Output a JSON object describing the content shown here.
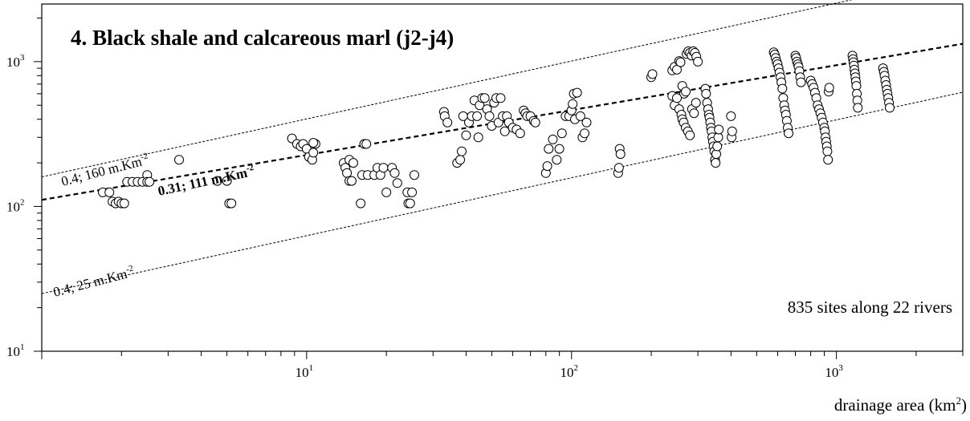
{
  "chart_data": {
    "type": "scatter",
    "title": "4. Black shale and calcareous marl  (j2-j4)",
    "xlabel": "drainage area (km²)",
    "xlabel_base": "drainage area (km",
    "xlabel_exp": "2",
    "xlabel_close": ")",
    "x_scale": "log",
    "y_scale": "log",
    "xlim": [
      1,
      3000
    ],
    "ylim": [
      10,
      2500
    ],
    "x_ticks": [
      {
        "base": "10",
        "exp": "1",
        "value": 10
      },
      {
        "base": "10",
        "exp": "2",
        "value": 100
      },
      {
        "base": "10",
        "exp": "3",
        "value": 1000
      }
    ],
    "y_ticks": [
      {
        "base": "10",
        "exp": "1",
        "value": 10
      },
      {
        "base": "10",
        "exp": "2",
        "value": 100
      },
      {
        "base": "10",
        "exp": "3",
        "value": 1000
      }
    ],
    "annotation": "835 sites along 22 rivers",
    "lines": [
      {
        "label": "0.4; 160 m.Km",
        "label_exp": "-2",
        "coef": 160,
        "exponent": 0.4,
        "style": "thin-dashed"
      },
      {
        "label": "0.31; 111 m.Km",
        "label_exp": "-2",
        "coef": 111,
        "exponent": 0.31,
        "style": "bold-dashed"
      },
      {
        "label": "0.4; 25 m.Km",
        "label_exp": "-2",
        "coef": 25,
        "exponent": 0.4,
        "style": "thin-dashed"
      }
    ],
    "points": [
      [
        1.7,
        125
      ],
      [
        1.8,
        125
      ],
      [
        1.85,
        108
      ],
      [
        1.9,
        105
      ],
      [
        1.95,
        108
      ],
      [
        2.0,
        105
      ],
      [
        2.05,
        105
      ],
      [
        2.1,
        148
      ],
      [
        2.2,
        148
      ],
      [
        2.3,
        148
      ],
      [
        2.4,
        148
      ],
      [
        2.5,
        165
      ],
      [
        2.5,
        148
      ],
      [
        2.55,
        148
      ],
      [
        3.3,
        210
      ],
      [
        4.6,
        150
      ],
      [
        5.0,
        150
      ],
      [
        5.1,
        105
      ],
      [
        5.2,
        105
      ],
      [
        8.8,
        295
      ],
      [
        9.2,
        270
      ],
      [
        9.5,
        260
      ],
      [
        9.7,
        270
      ],
      [
        10.0,
        250
      ],
      [
        10.2,
        220
      ],
      [
        10.5,
        210
      ],
      [
        10.6,
        235
      ],
      [
        10.8,
        270
      ],
      [
        10.6,
        275
      ],
      [
        13.8,
        200
      ],
      [
        14.0,
        185
      ],
      [
        14.2,
        170
      ],
      [
        14.5,
        210
      ],
      [
        14.5,
        150
      ],
      [
        14.8,
        150
      ],
      [
        15.0,
        200
      ],
      [
        16.0,
        105
      ],
      [
        16.2,
        165
      ],
      [
        16.5,
        270
      ],
      [
        16.8,
        270
      ],
      [
        17.0,
        165
      ],
      [
        18.0,
        165
      ],
      [
        18.5,
        185
      ],
      [
        19.0,
        165
      ],
      [
        19.5,
        185
      ],
      [
        20.0,
        125
      ],
      [
        21.0,
        185
      ],
      [
        21.5,
        170
      ],
      [
        22.0,
        145
      ],
      [
        24.0,
        125
      ],
      [
        24.2,
        105
      ],
      [
        24.6,
        105
      ],
      [
        25.0,
        125
      ],
      [
        25.5,
        165
      ],
      [
        33,
        450
      ],
      [
        33.2,
        420
      ],
      [
        34,
        380
      ],
      [
        37,
        200
      ],
      [
        38,
        210
      ],
      [
        38.5,
        240
      ],
      [
        39,
        420
      ],
      [
        40,
        310
      ],
      [
        41,
        380
      ],
      [
        42,
        420
      ],
      [
        43,
        540
      ],
      [
        44,
        420
      ],
      [
        44.5,
        300
      ],
      [
        45,
        500
      ],
      [
        46,
        560
      ],
      [
        47,
        560
      ],
      [
        48,
        470
      ],
      [
        49,
        420
      ],
      [
        50,
        360
      ],
      [
        51,
        520
      ],
      [
        52,
        560
      ],
      [
        53,
        380
      ],
      [
        54,
        560
      ],
      [
        55,
        420
      ],
      [
        56,
        330
      ],
      [
        57,
        420
      ],
      [
        58,
        380
      ],
      [
        60,
        350
      ],
      [
        62,
        340
      ],
      [
        64,
        320
      ],
      [
        66,
        460
      ],
      [
        67,
        440
      ],
      [
        68,
        420
      ],
      [
        70,
        420
      ],
      [
        72,
        390
      ],
      [
        73,
        380
      ],
      [
        80,
        170
      ],
      [
        81,
        190
      ],
      [
        82,
        250
      ],
      [
        85,
        290
      ],
      [
        88,
        210
      ],
      [
        90,
        250
      ],
      [
        92,
        320
      ],
      [
        95,
        420
      ],
      [
        98,
        420
      ],
      [
        100,
        460
      ],
      [
        101,
        510
      ],
      [
        102,
        600
      ],
      [
        103,
        400
      ],
      [
        105,
        610
      ],
      [
        108,
        420
      ],
      [
        110,
        300
      ],
      [
        112,
        320
      ],
      [
        114,
        380
      ],
      [
        150,
        170
      ],
      [
        151,
        185
      ],
      [
        152,
        250
      ],
      [
        153,
        230
      ],
      [
        200,
        780
      ],
      [
        202,
        820
      ],
      [
        240,
        870
      ],
      [
        245,
        920
      ],
      [
        250,
        880
      ],
      [
        255,
        1010
      ],
      [
        258,
        990
      ],
      [
        262,
        680
      ],
      [
        266,
        600
      ],
      [
        270,
        620
      ],
      [
        272,
        1130
      ],
      [
        276,
        1180
      ],
      [
        280,
        1150
      ],
      [
        284,
        1100
      ],
      [
        288,
        1180
      ],
      [
        292,
        1150
      ],
      [
        296,
        1080
      ],
      [
        300,
        1000
      ],
      [
        240,
        580
      ],
      [
        245,
        500
      ],
      [
        250,
        560
      ],
      [
        255,
        470
      ],
      [
        260,
        430
      ],
      [
        262,
        400
      ],
      [
        265,
        380
      ],
      [
        270,
        350
      ],
      [
        275,
        330
      ],
      [
        280,
        310
      ],
      [
        285,
        470
      ],
      [
        290,
        440
      ],
      [
        295,
        520
      ],
      [
        320,
        650
      ],
      [
        322,
        600
      ],
      [
        325,
        520
      ],
      [
        328,
        470
      ],
      [
        330,
        430
      ],
      [
        332,
        410
      ],
      [
        334,
        380
      ],
      [
        336,
        350
      ],
      [
        338,
        330
      ],
      [
        340,
        300
      ],
      [
        342,
        280
      ],
      [
        344,
        260
      ],
      [
        346,
        240
      ],
      [
        348,
        210
      ],
      [
        350,
        200
      ],
      [
        352,
        230
      ],
      [
        355,
        260
      ],
      [
        358,
        300
      ],
      [
        360,
        340
      ],
      [
        400,
        420
      ],
      [
        402,
        300
      ],
      [
        404,
        330
      ],
      [
        580,
        1160
      ],
      [
        585,
        1120
      ],
      [
        590,
        1060
      ],
      [
        595,
        1000
      ],
      [
        600,
        960
      ],
      [
        605,
        900
      ],
      [
        610,
        840
      ],
      [
        615,
        780
      ],
      [
        620,
        720
      ],
      [
        625,
        650
      ],
      [
        630,
        560
      ],
      [
        635,
        500
      ],
      [
        640,
        460
      ],
      [
        645,
        430
      ],
      [
        650,
        390
      ],
      [
        655,
        350
      ],
      [
        660,
        320
      ],
      [
        700,
        1100
      ],
      [
        705,
        1060
      ],
      [
        710,
        1000
      ],
      [
        715,
        960
      ],
      [
        720,
        920
      ],
      [
        725,
        860
      ],
      [
        730,
        780
      ],
      [
        735,
        720
      ],
      [
        800,
        740
      ],
      [
        810,
        700
      ],
      [
        820,
        660
      ],
      [
        830,
        610
      ],
      [
        840,
        560
      ],
      [
        850,
        500
      ],
      [
        860,
        470
      ],
      [
        870,
        440
      ],
      [
        880,
        410
      ],
      [
        890,
        380
      ],
      [
        900,
        350
      ],
      [
        905,
        330
      ],
      [
        910,
        300
      ],
      [
        915,
        280
      ],
      [
        920,
        260
      ],
      [
        925,
        240
      ],
      [
        930,
        210
      ],
      [
        935,
        620
      ],
      [
        940,
        660
      ],
      [
        1150,
        1100
      ],
      [
        1155,
        1040
      ],
      [
        1160,
        990
      ],
      [
        1165,
        940
      ],
      [
        1170,
        880
      ],
      [
        1175,
        830
      ],
      [
        1180,
        780
      ],
      [
        1185,
        730
      ],
      [
        1190,
        680
      ],
      [
        1195,
        600
      ],
      [
        1200,
        540
      ],
      [
        1205,
        480
      ],
      [
        1500,
        900
      ],
      [
        1510,
        850
      ],
      [
        1520,
        800
      ],
      [
        1530,
        740
      ],
      [
        1540,
        690
      ],
      [
        1550,
        640
      ],
      [
        1560,
        600
      ],
      [
        1570,
        560
      ],
      [
        1580,
        520
      ],
      [
        1590,
        480
      ]
    ]
  }
}
